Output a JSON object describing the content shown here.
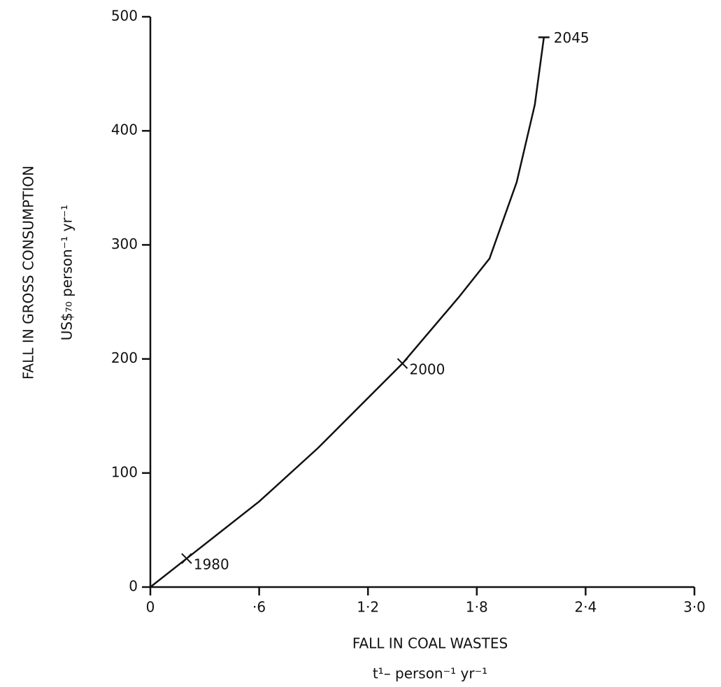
{
  "chart_data": {
    "type": "line",
    "xlabel": [
      "FALL IN COAL WASTES",
      "t¹– person⁻¹ yr⁻¹"
    ],
    "ylabel": [
      "FALL IN GROSS CONSUMPTION",
      "US$₇₀ person⁻¹ yr⁻¹"
    ],
    "x": [
      0,
      0.2,
      0.6,
      0.925,
      1.39,
      1.7,
      1.87,
      2.02,
      2.12,
      2.17
    ],
    "values": [
      0,
      25,
      75,
      122,
      196,
      254,
      288,
      355,
      423,
      482
    ],
    "color": "#111111",
    "xlim": [
      0,
      3.0
    ],
    "ylim": [
      0,
      500
    ],
    "xticks": [
      0,
      {
        "value": 0.6,
        "label": "·6"
      },
      {
        "value": 1.2,
        "label": "1·2"
      },
      {
        "value": 1.8,
        "label": "1·8"
      },
      {
        "value": 2.4,
        "label": "2·4"
      },
      {
        "value": 3.0,
        "label": "3·0"
      }
    ],
    "yticks": [
      0,
      100,
      200,
      300,
      400,
      500
    ],
    "grid": false,
    "annotations": [
      {
        "label": "1980",
        "x": 0.2,
        "y": 25,
        "marker": "cross"
      },
      {
        "label": "2000",
        "x": 1.39,
        "y": 196,
        "marker": "cross"
      },
      {
        "label": "2045",
        "x": 2.17,
        "y": 482,
        "marker": "bar"
      }
    ]
  }
}
